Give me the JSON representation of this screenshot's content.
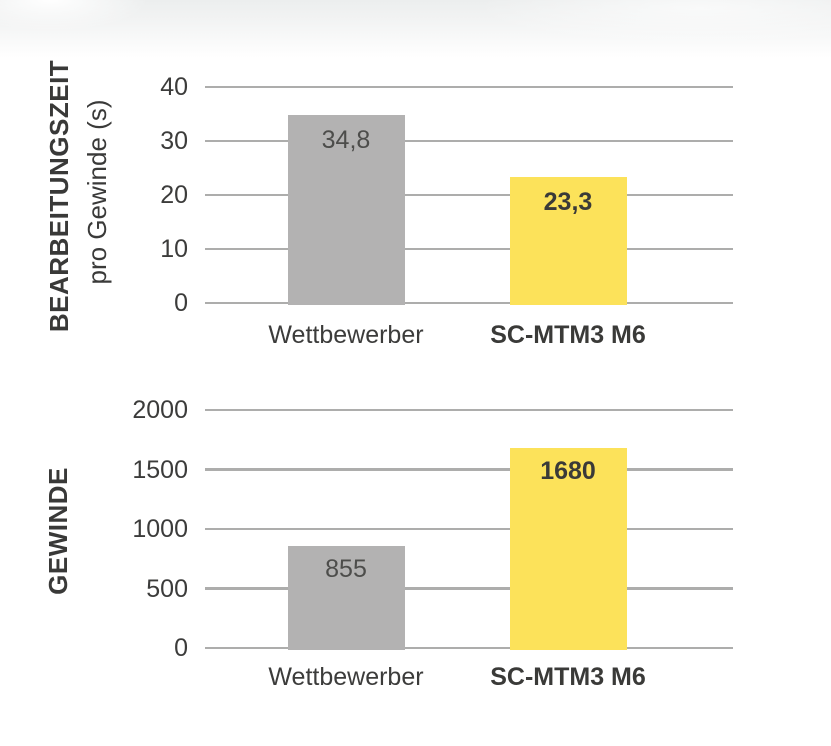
{
  "colors": {
    "bar_gray": "#b3b2b2",
    "bar_highlight": "#fce25a",
    "gridline": "#adadac",
    "text_dark": "#3c3c3b",
    "value_on_gray": "#4d4d4b"
  },
  "chart_data": [
    {
      "type": "bar",
      "title": "BEARBEITUNGSZEIT",
      "subtitle": "pro Gewinde (s)",
      "categories": [
        "Wettbewerber",
        "SC-MTM3 M6"
      ],
      "values": [
        34.8,
        23.3
      ],
      "value_labels": [
        "34,8",
        "23,3"
      ],
      "highlighted": [
        false,
        true
      ],
      "ylim": [
        0,
        40
      ],
      "yticks": [
        0,
        10,
        20,
        30,
        40
      ],
      "ytick_labels": [
        "0",
        "10",
        "20",
        "30",
        "40"
      ],
      "grid": true,
      "legend": false
    },
    {
      "type": "bar",
      "title": "GEWINDE",
      "subtitle": "",
      "categories": [
        "Wettbewerber",
        "SC-MTM3 M6"
      ],
      "values": [
        855,
        1680
      ],
      "value_labels": [
        "855",
        "1680"
      ],
      "highlighted": [
        false,
        true
      ],
      "ylim": [
        0,
        2000
      ],
      "yticks": [
        0,
        500,
        1000,
        1500,
        2000
      ],
      "ytick_labels": [
        "0",
        "500",
        "1000",
        "1500",
        "2000"
      ],
      "grid": true,
      "legend": false
    }
  ]
}
